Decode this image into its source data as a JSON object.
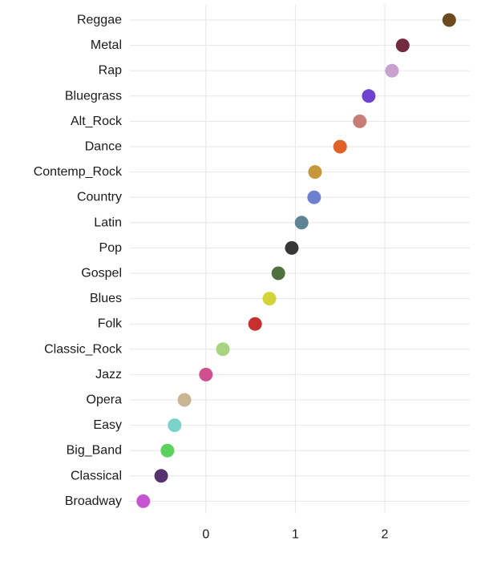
{
  "chart_data": {
    "type": "scatter",
    "title": "",
    "xlabel": "",
    "ylabel": "",
    "xlim": [
      -0.85,
      2.95
    ],
    "xticks": [
      0,
      1,
      2
    ],
    "grid": true,
    "legend": "none",
    "categories": [
      "Reggae",
      "Metal",
      "Rap",
      "Bluegrass",
      "Alt_Rock",
      "Dance",
      "Contemp_Rock",
      "Country",
      "Latin",
      "Pop",
      "Gospel",
      "Blues",
      "Folk",
      "Classic_Rock",
      "Jazz",
      "Opera",
      "Easy",
      "Big_Band",
      "Classical",
      "Broadway"
    ],
    "values": [
      2.72,
      2.2,
      2.08,
      1.82,
      1.72,
      1.5,
      1.22,
      1.21,
      1.07,
      0.96,
      0.81,
      0.71,
      0.55,
      0.19,
      0.0,
      -0.24,
      -0.35,
      -0.43,
      -0.5,
      -0.7
    ],
    "colors": [
      "#6b4a1d",
      "#722a3f",
      "#c8a2cf",
      "#6d42cf",
      "#c97d77",
      "#df6329",
      "#c8973b",
      "#6d80cf",
      "#5e8494",
      "#373737",
      "#4f703f",
      "#d3d33a",
      "#c82f2f",
      "#a8d47f",
      "#d04f8e",
      "#c9b592",
      "#79d3c8",
      "#5bd15e",
      "#55316d",
      "#c855d0"
    ]
  }
}
